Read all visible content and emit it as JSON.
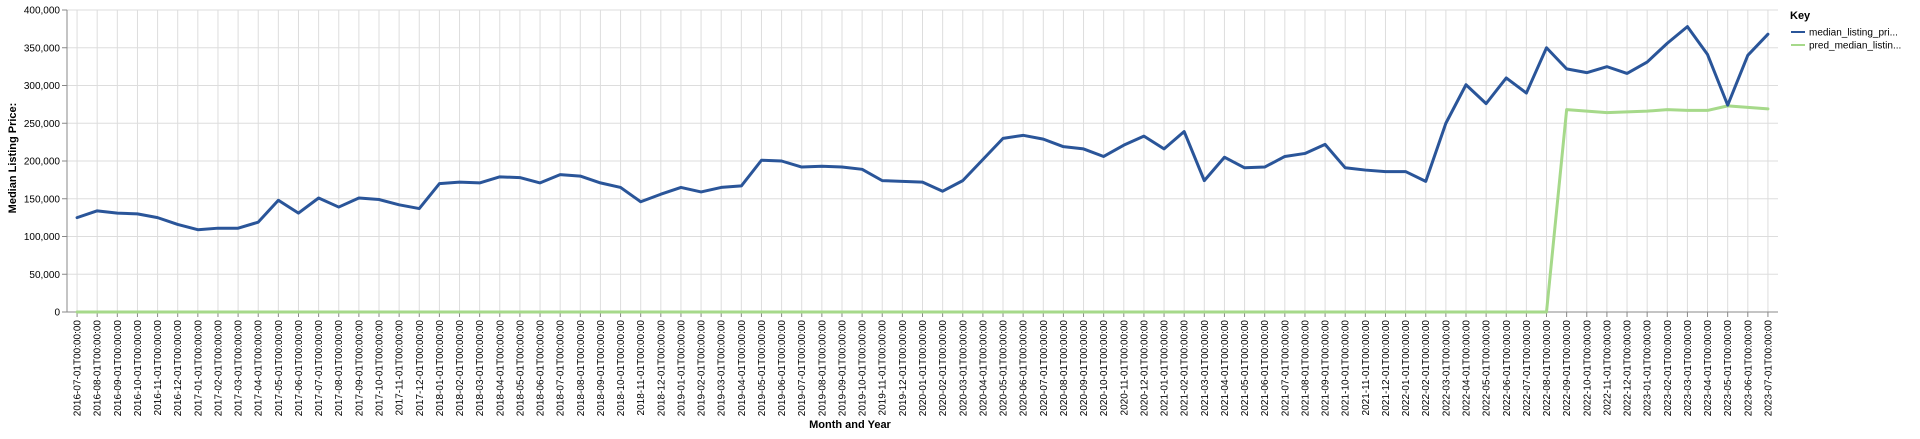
{
  "chart_data": {
    "type": "line",
    "xlabel": "Month and Year",
    "ylabel": "Median Listing Price:",
    "ylim": [
      0,
      400000
    ],
    "y_ticks": [
      0,
      50000,
      100000,
      150000,
      200000,
      250000,
      300000,
      350000,
      400000
    ],
    "y_tick_labels": [
      "0",
      "50,000",
      "100,000",
      "150,000",
      "200,000",
      "250,000",
      "300,000",
      "350,000",
      "400,000"
    ],
    "grid": true,
    "legend": {
      "title": "Key",
      "placement": "right"
    },
    "x": [
      "2016-07-01T00:00:00",
      "2016-08-01T00:00:00",
      "2016-09-01T00:00:00",
      "2016-10-01T00:00:00",
      "2016-11-01T00:00:00",
      "2016-12-01T00:00:00",
      "2017-01-01T00:00:00",
      "2017-02-01T00:00:00",
      "2017-03-01T00:00:00",
      "2017-04-01T00:00:00",
      "2017-05-01T00:00:00",
      "2017-06-01T00:00:00",
      "2017-07-01T00:00:00",
      "2017-08-01T00:00:00",
      "2017-09-01T00:00:00",
      "2017-10-01T00:00:00",
      "2017-11-01T00:00:00",
      "2017-12-01T00:00:00",
      "2018-01-01T00:00:00",
      "2018-02-01T00:00:00",
      "2018-03-01T00:00:00",
      "2018-04-01T00:00:00",
      "2018-05-01T00:00:00",
      "2018-06-01T00:00:00",
      "2018-07-01T00:00:00",
      "2018-08-01T00:00:00",
      "2018-09-01T00:00:00",
      "2018-10-01T00:00:00",
      "2018-11-01T00:00:00",
      "2018-12-01T00:00:00",
      "2019-01-01T00:00:00",
      "2019-02-01T00:00:00",
      "2019-03-01T00:00:00",
      "2019-04-01T00:00:00",
      "2019-05-01T00:00:00",
      "2019-06-01T00:00:00",
      "2019-07-01T00:00:00",
      "2019-08-01T00:00:00",
      "2019-09-01T00:00:00",
      "2019-10-01T00:00:00",
      "2019-11-01T00:00:00",
      "2019-12-01T00:00:00",
      "2020-01-01T00:00:00",
      "2020-02-01T00:00:00",
      "2020-03-01T00:00:00",
      "2020-04-01T00:00:00",
      "2020-05-01T00:00:00",
      "2020-06-01T00:00:00",
      "2020-07-01T00:00:00",
      "2020-08-01T00:00:00",
      "2020-09-01T00:00:00",
      "2020-10-01T00:00:00",
      "2020-11-01T00:00:00",
      "2020-12-01T00:00:00",
      "2021-01-01T00:00:00",
      "2021-02-01T00:00:00",
      "2021-03-01T00:00:00",
      "2021-04-01T00:00:00",
      "2021-05-01T00:00:00",
      "2021-06-01T00:00:00",
      "2021-07-01T00:00:00",
      "2021-08-01T00:00:00",
      "2021-09-01T00:00:00",
      "2021-10-01T00:00:00",
      "2021-11-01T00:00:00",
      "2021-12-01T00:00:00",
      "2022-01-01T00:00:00",
      "2022-02-01T00:00:00",
      "2022-03-01T00:00:00",
      "2022-04-01T00:00:00",
      "2022-05-01T00:00:00",
      "2022-06-01T00:00:00",
      "2022-07-01T00:00:00",
      "2022-08-01T00:00:00",
      "2022-09-01T00:00:00",
      "2022-10-01T00:00:00",
      "2022-11-01T00:00:00",
      "2022-12-01T00:00:00",
      "2023-01-01T00:00:00",
      "2023-02-01T00:00:00",
      "2023-03-01T00:00:00",
      "2023-04-01T00:00:00",
      "2023-05-01T00:00:00",
      "2023-06-01T00:00:00",
      "2023-07-01T00:00:00"
    ],
    "series": [
      {
        "name": "median_listing_pri...",
        "color": "#2a5599",
        "values": [
          125000,
          134000,
          131000,
          130000,
          125000,
          116000,
          109000,
          111000,
          111000,
          119000,
          148000,
          131000,
          151000,
          139000,
          151000,
          149000,
          142000,
          137000,
          170000,
          172000,
          171000,
          179000,
          178000,
          171000,
          182000,
          180000,
          171000,
          165000,
          146000,
          156000,
          165000,
          159000,
          165000,
          167000,
          201000,
          200000,
          192000,
          193000,
          192000,
          189000,
          174000,
          173000,
          172000,
          160000,
          174000,
          202000,
          230000,
          234000,
          229000,
          219000,
          216000,
          206000,
          221000,
          233000,
          216000,
          239000,
          174000,
          205000,
          191000,
          192000,
          206000,
          210000,
          222000,
          191000,
          188000,
          186000,
          186000,
          173000,
          250000,
          301000,
          276000,
          310000,
          290000,
          350000,
          322000,
          317000,
          325000,
          316000,
          331000,
          356000,
          378000,
          341000,
          274000,
          340000,
          368000
        ]
      },
      {
        "name": "pred_median_listin...",
        "color": "#a6d98a",
        "values": [
          0,
          0,
          0,
          0,
          0,
          0,
          0,
          0,
          0,
          0,
          0,
          0,
          0,
          0,
          0,
          0,
          0,
          0,
          0,
          0,
          0,
          0,
          0,
          0,
          0,
          0,
          0,
          0,
          0,
          0,
          0,
          0,
          0,
          0,
          0,
          0,
          0,
          0,
          0,
          0,
          0,
          0,
          0,
          0,
          0,
          0,
          0,
          0,
          0,
          0,
          0,
          0,
          0,
          0,
          0,
          0,
          0,
          0,
          0,
          0,
          0,
          0,
          0,
          0,
          0,
          0,
          0,
          0,
          0,
          0,
          0,
          0,
          0,
          0,
          268000,
          266000,
          264000,
          265000,
          266000,
          268000,
          267000,
          267000,
          273000,
          271000,
          269000
        ]
      }
    ]
  }
}
